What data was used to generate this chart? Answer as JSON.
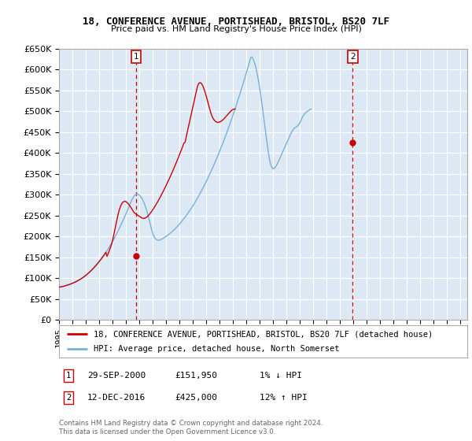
{
  "title": "18, CONFERENCE AVENUE, PORTISHEAD, BRISTOL, BS20 7LF",
  "subtitle": "Price paid vs. HM Land Registry's House Price Index (HPI)",
  "legend_line1": "18, CONFERENCE AVENUE, PORTISHEAD, BRISTOL, BS20 7LF (detached house)",
  "legend_line2": "HPI: Average price, detached house, North Somerset",
  "footnote": "Contains HM Land Registry data © Crown copyright and database right 2024.\nThis data is licensed under the Open Government Licence v3.0.",
  "annotation1_date": "29-SEP-2000",
  "annotation1_price": "£151,950",
  "annotation1_note": "1% ↓ HPI",
  "annotation2_date": "12-DEC-2016",
  "annotation2_price": "£425,000",
  "annotation2_note": "12% ↑ HPI",
  "sale_color": "#cc0000",
  "hpi_color": "#7bafd4",
  "plot_bg_color": "#dce9f5",
  "bg_color": "#ffffff",
  "grid_color": "#ffffff",
  "ylim": [
    0,
    650000
  ],
  "yticks": [
    0,
    50000,
    100000,
    150000,
    200000,
    250000,
    300000,
    350000,
    400000,
    450000,
    500000,
    550000,
    600000,
    650000
  ],
  "sale1_x": 2000.75,
  "sale1_y": 151950,
  "sale2_x": 2016.94,
  "sale2_y": 425000,
  "ann1_x": 2000.75,
  "ann2_x": 2016.94,
  "xlim": [
    1995.0,
    2025.5
  ],
  "xtick_years": [
    1995,
    1996,
    1997,
    1998,
    1999,
    2000,
    2001,
    2002,
    2003,
    2004,
    2005,
    2006,
    2007,
    2008,
    2009,
    2010,
    2011,
    2012,
    2013,
    2014,
    2015,
    2016,
    2017,
    2018,
    2019,
    2020,
    2021,
    2022,
    2023,
    2024,
    2025
  ],
  "hpi_start_x": 1995.0,
  "hpi_data": [
    78000,
    78500,
    79000,
    79500,
    80000,
    80800,
    81600,
    82400,
    83200,
    84200,
    85200,
    86200,
    87300,
    88500,
    89700,
    91000,
    92300,
    93700,
    95200,
    96800,
    98500,
    100300,
    102200,
    104200,
    106300,
    108500,
    110800,
    113200,
    115700,
    118300,
    121000,
    123800,
    126700,
    129700,
    132800,
    136000,
    139300,
    142700,
    146200,
    149800,
    153500,
    157400,
    161400,
    165500,
    169700,
    174000,
    178500,
    183100,
    187800,
    192600,
    197600,
    202700,
    207900,
    213200,
    218700,
    224300,
    230000,
    235800,
    241700,
    247700,
    253800,
    260000,
    266300,
    272700,
    279200,
    285800,
    290500,
    295300,
    298200,
    300100,
    301000,
    300500,
    298800,
    296000,
    292200,
    287400,
    281600,
    274800,
    267000,
    258200,
    248400,
    237600,
    226800,
    216000,
    207200,
    200400,
    195600,
    192800,
    191000,
    190200,
    190500,
    191800,
    193200,
    194700,
    196300,
    198000,
    199800,
    201700,
    203700,
    205800,
    208000,
    210300,
    212700,
    215200,
    217800,
    220500,
    223300,
    226200,
    229200,
    232300,
    235500,
    238800,
    242200,
    245700,
    249300,
    253000,
    256800,
    260700,
    264700,
    268800,
    273000,
    277300,
    281700,
    286200,
    290800,
    295500,
    300300,
    305200,
    310200,
    315300,
    320500,
    325800,
    331200,
    336700,
    342300,
    348000,
    353800,
    359700,
    365700,
    371800,
    378000,
    384300,
    390700,
    397200,
    403800,
    410500,
    417300,
    424200,
    431200,
    438300,
    445500,
    452800,
    460200,
    467700,
    475300,
    483000,
    490800,
    498700,
    506700,
    514800,
    523000,
    531300,
    539700,
    548200,
    556800,
    565500,
    574300,
    583200,
    592200,
    601300,
    610500,
    619800,
    629200,
    630000,
    625000,
    618000,
    609000,
    598000,
    585000,
    570000,
    553000,
    535000,
    516000,
    496000,
    475000,
    454000,
    433000,
    413000,
    395000,
    380000,
    370000,
    364000,
    362000,
    363000,
    366000,
    370000,
    375000,
    381000,
    387000,
    393000,
    399000,
    405000,
    411000,
    417000,
    423000,
    429000,
    435000,
    441000,
    447000,
    452000,
    456000,
    459000,
    461000,
    463000,
    465000,
    468000,
    472000,
    478000,
    484000,
    489000,
    493000,
    496000,
    498000,
    500000,
    502000,
    504000,
    505000
  ],
  "red_indexed_data": [
    78000,
    78500,
    79000,
    79500,
    80000,
    80800,
    81600,
    82400,
    83200,
    84200,
    85200,
    86200,
    87300,
    88500,
    89700,
    91000,
    92300,
    93700,
    95200,
    96800,
    98500,
    100300,
    102200,
    104200,
    106300,
    108500,
    110800,
    113200,
    115700,
    118300,
    121000,
    123800,
    126700,
    129700,
    132800,
    136000,
    139300,
    142700,
    146200,
    149800,
    153500,
    157400,
    161400,
    151950,
    158000,
    165000,
    172000,
    180000,
    190000,
    202000,
    215000,
    228000,
    241000,
    253000,
    263000,
    271000,
    277000,
    281000,
    283000,
    284000,
    283000,
    280800,
    278200,
    274800,
    271000,
    267000,
    262600,
    258000,
    255200,
    253400,
    251600,
    249800,
    248000,
    246200,
    244400,
    243100,
    242800,
    243400,
    244800,
    246800,
    249400,
    252400,
    255800,
    259400,
    263300,
    267400,
    271700,
    276100,
    280700,
    285400,
    290200,
    295200,
    300300,
    305500,
    310800,
    316200,
    321700,
    327300,
    333000,
    338800,
    344700,
    350700,
    356800,
    363000,
    369300,
    375700,
    382200,
    388800,
    395500,
    402300,
    409200,
    416200,
    423300,
    425000,
    438000,
    450000,
    462000,
    474000,
    486000,
    498000,
    510000,
    522000,
    534000,
    546000,
    558000,
    565000,
    568000,
    568000,
    565000,
    560000,
    553000,
    545000,
    536000,
    526000,
    516000,
    506000,
    497000,
    489000,
    483000,
    479000,
    476000,
    474000,
    473000,
    473000,
    474000,
    475000,
    477000,
    479000,
    482000,
    485000,
    488000,
    491000,
    494000,
    497000,
    500000,
    502000,
    504000,
    505000,
    505000
  ]
}
